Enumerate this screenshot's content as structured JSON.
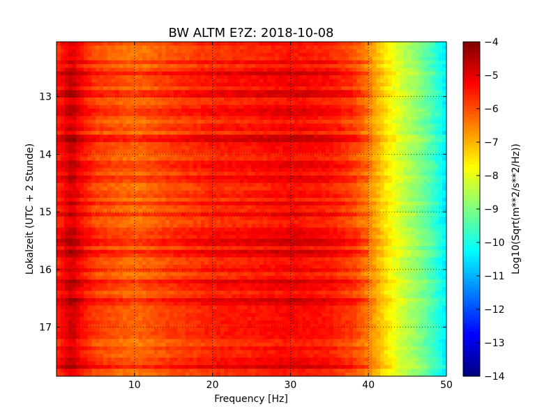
{
  "chart_data": {
    "type": "heatmap",
    "title": "BW ALTM E?Z: 2018-10-08",
    "xlabel": "Frequency [Hz]",
    "ylabel": "Lokalzeit (UTC + 2 Stunde)",
    "xlim": [
      0,
      50
    ],
    "ylim": [
      17.85,
      12.05
    ],
    "y_inverted": true,
    "grid": true,
    "x_ticks": [
      10,
      20,
      30,
      40,
      50
    ],
    "x_tick_labels": [
      "10",
      "20",
      "30",
      "40",
      "50"
    ],
    "y_ticks": [
      13,
      14,
      15,
      16,
      17
    ],
    "y_tick_labels": [
      "13",
      "14",
      "15",
      "16",
      "17"
    ],
    "colorbar": {
      "label": "Log10(Sqrt(m**2/s**2/Hz))",
      "range": [
        -14,
        -4
      ],
      "ticks": [
        -4,
        -5,
        -6,
        -7,
        -8,
        -9,
        -10,
        -11,
        -12,
        -13,
        -14
      ],
      "tick_labels": [
        "−4",
        "−5",
        "−6",
        "−7",
        "−8",
        "−9",
        "−10",
        "−11",
        "−12",
        "−13",
        "−14"
      ],
      "colormap": "jet"
    },
    "frequency_profile": {
      "hz": [
        0,
        1,
        2,
        3,
        5,
        10,
        15,
        20,
        25,
        30,
        35,
        38,
        40,
        42,
        44,
        46,
        48,
        50
      ],
      "log10_amplitude": [
        -5.6,
        -5.2,
        -4.8,
        -5.3,
        -5.9,
        -6.3,
        -5.9,
        -5.6,
        -5.5,
        -5.3,
        -5.5,
        -5.9,
        -6.5,
        -7.4,
        -8.2,
        -8.8,
        -9.5,
        -10.5
      ]
    },
    "strong_time_bands": [
      12.4,
      12.6,
      12.95,
      13.25,
      13.7,
      14.2,
      14.45,
      14.85,
      15.05,
      15.4,
      15.55,
      15.75,
      16.25,
      16.55,
      17.65
    ]
  }
}
